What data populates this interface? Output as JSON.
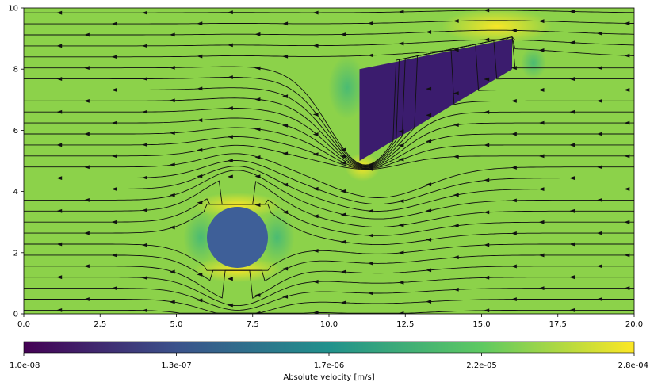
{
  "chart_data": {
    "type": "heatmap",
    "subtype": "streamline-velocity-field",
    "title": "",
    "xlim": [
      0,
      20
    ],
    "ylim": [
      0,
      10
    ],
    "x_ticks": [
      "0.0",
      "2.5",
      "5.0",
      "7.5",
      "10.0",
      "12.5",
      "15.0",
      "17.5",
      "20.0"
    ],
    "x_tick_values": [
      0,
      2.5,
      5,
      7.5,
      10,
      12.5,
      15,
      17.5,
      20
    ],
    "y_ticks": [
      "0",
      "2",
      "4",
      "6",
      "8",
      "10"
    ],
    "y_tick_values": [
      0,
      2,
      4,
      6,
      8,
      10
    ],
    "flow_direction": "right-to-left",
    "colormap": "viridis",
    "colormap_stops": [
      "#440154",
      "#3b528b",
      "#21918c",
      "#5ec962",
      "#fde725"
    ],
    "background_color": "#8cd24a",
    "obstacles": [
      {
        "shape": "circle",
        "center": [
          7,
          2.5
        ],
        "radius": 1.0,
        "color": "#3e5f98"
      },
      {
        "shape": "polygon",
        "vertices": [
          [
            11,
            5
          ],
          [
            11,
            8
          ],
          [
            16,
            9
          ],
          [
            16,
            8
          ]
        ],
        "color": "#3b1c6e"
      }
    ],
    "colorbar": {
      "label": "Absolute velocity [m/s]",
      "scale": "log",
      "range": [
        1e-08,
        0.00028
      ],
      "ticks": [
        "1.0e-08",
        "1.3e-07",
        "1.7e-06",
        "2.2e-05",
        "2.8e-04"
      ]
    }
  }
}
